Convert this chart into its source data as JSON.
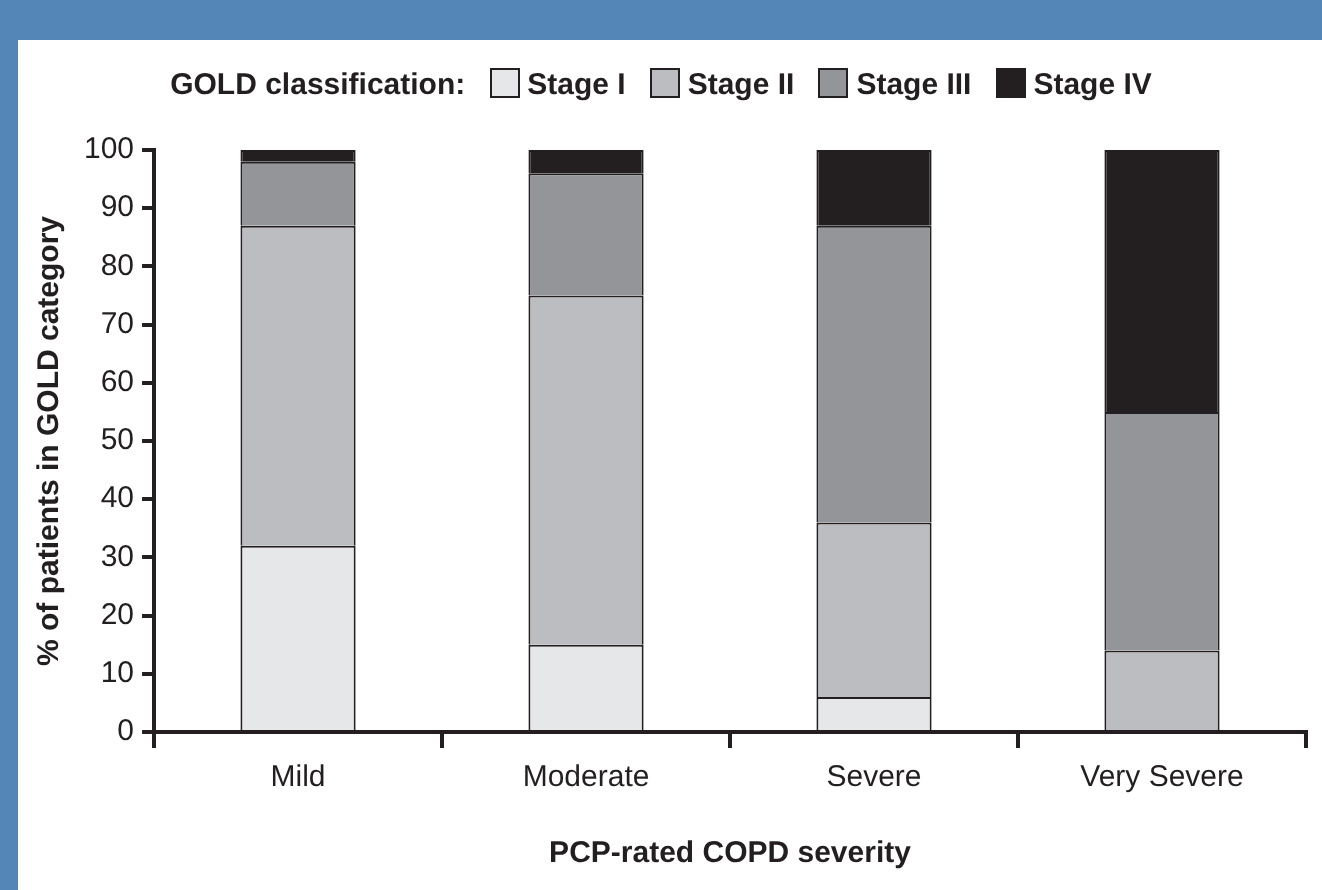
{
  "chart_data": {
    "type": "bar",
    "stacked": true,
    "xlabel": "PCP-rated COPD severity",
    "ylabel": "% of patients in GOLD category",
    "legend_title": "GOLD classification:",
    "legend": "top",
    "grid": false,
    "categories": [
      "Mild",
      "Moderate",
      "Severe",
      "Very Severe"
    ],
    "ylim": [
      0,
      100
    ],
    "yticks": [
      0,
      10,
      20,
      30,
      40,
      50,
      60,
      70,
      80,
      90,
      100
    ],
    "series": [
      {
        "name": "Stage I",
        "color": "#e6e7e8",
        "values": [
          32,
          15,
          6,
          0
        ]
      },
      {
        "name": "Stage II",
        "color": "#bcbdc0",
        "values": [
          55,
          60,
          30,
          14
        ]
      },
      {
        "name": "Stage III",
        "color": "#939598",
        "values": [
          11,
          21,
          51,
          41
        ]
      },
      {
        "name": "Stage IV",
        "color": "#231f20",
        "values": [
          2,
          4,
          13,
          45
        ]
      }
    ]
  }
}
